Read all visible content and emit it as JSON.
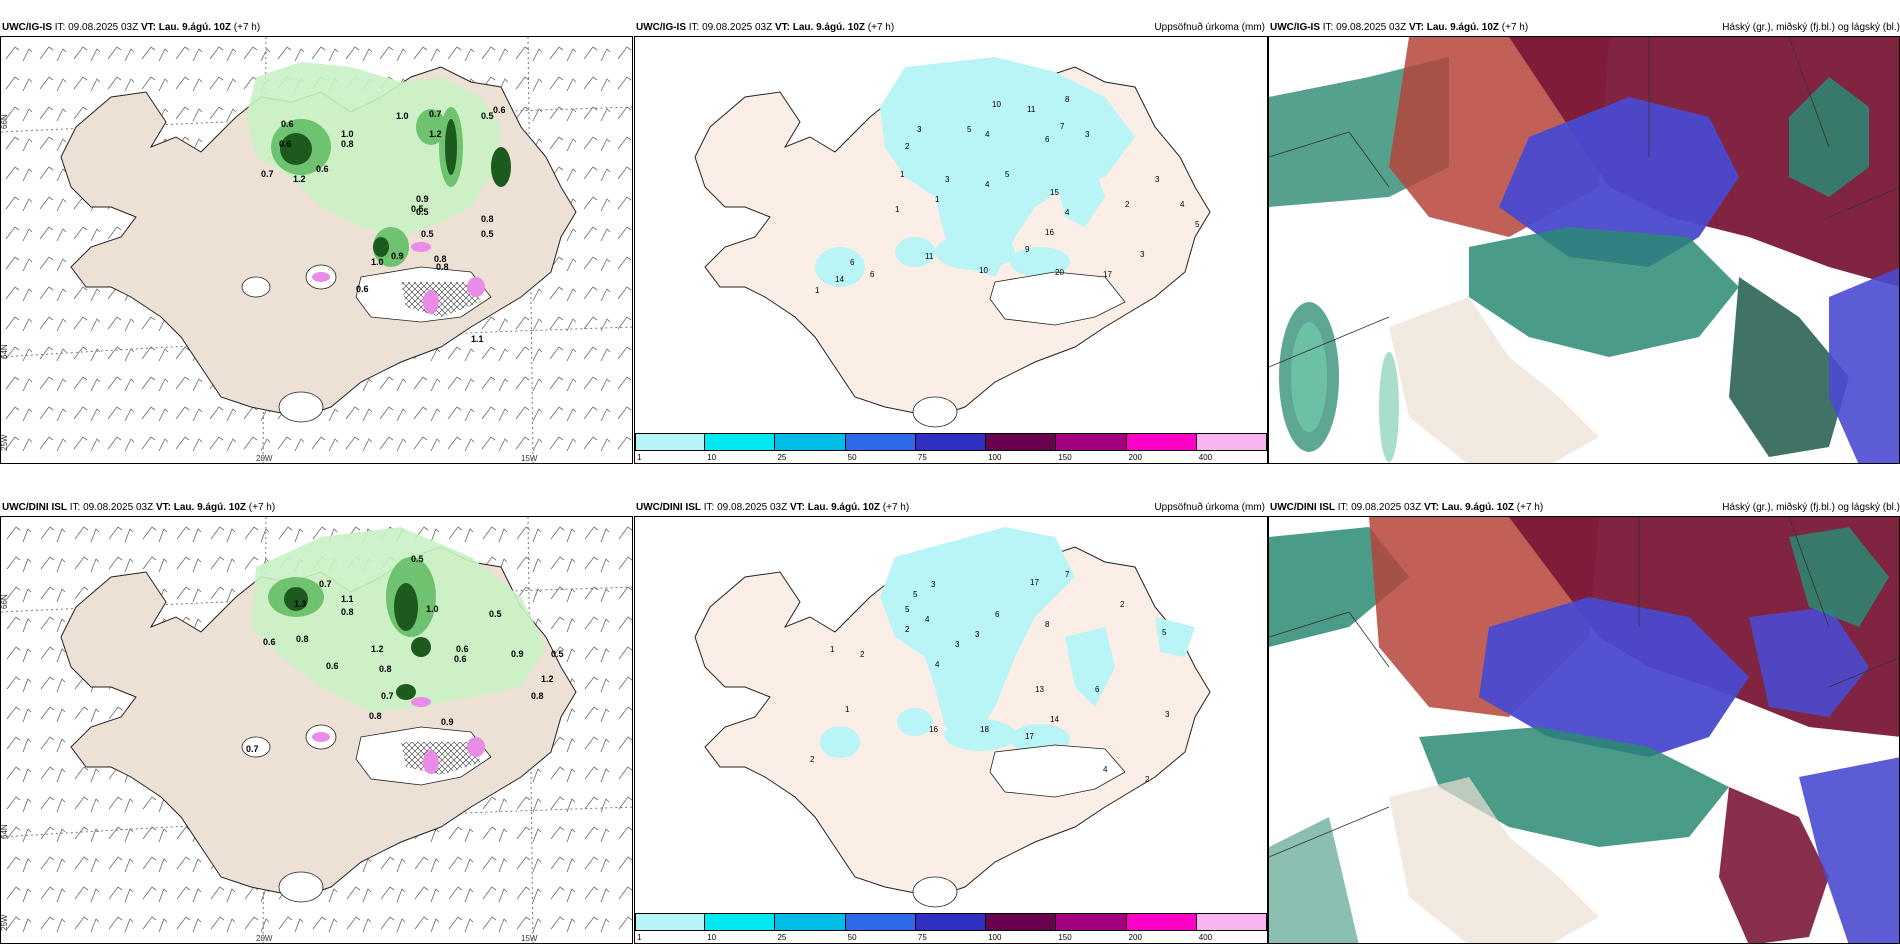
{
  "rows": [
    {
      "model": "UWC/IG-IS",
      "it_label": "IT:",
      "it_value": "09.08.2025 03Z",
      "vt_label": "VT:",
      "vt_value": "Lau. 9.ágú. 10Z",
      "lead": "(+7 h)",
      "wind_panel": {
        "lat_labels": [
          "66N",
          "64N",
          "25W"
        ],
        "lon_labels": [
          "20W",
          "15W"
        ],
        "values": [
          "0.6",
          "1.0",
          "0.6",
          "0.8",
          "0.7",
          "1.2",
          "0.6",
          "1.0",
          "0.7",
          "1.2",
          "0.5",
          "0.6",
          "0.9",
          "0.8",
          "0.5",
          "0.5",
          "1.0",
          "0.9",
          "0.8",
          "0.5",
          "0.6",
          "1.1",
          "0.5",
          "0.8"
        ]
      },
      "precip_panel": {
        "title_right": "Uppsöfnuð úrkoma (mm)",
        "values": [
          "2",
          "3",
          "10",
          "11",
          "8",
          "5",
          "4",
          "6",
          "7",
          "3",
          "1",
          "3",
          "4",
          "5",
          "15",
          "1",
          "6",
          "16",
          "4",
          "11",
          "9",
          "10",
          "20",
          "17",
          "14",
          "6",
          "1",
          "2",
          "3",
          "4",
          "5",
          "3",
          "1"
        ]
      },
      "cloud_panel": {
        "title_right": "Háský (gr.), miðský (fj.bl.) og lágský (bl.)"
      }
    },
    {
      "model": "UWC/DINI ISL",
      "it_label": "IT:",
      "it_value": "09.08.2025 03Z",
      "vt_label": "VT:",
      "vt_value": "Lau. 9.ágú. 10Z",
      "lead": "(+7 h)",
      "wind_panel": {
        "lat_labels": [
          "66N",
          "64N",
          "25W"
        ],
        "lon_labels": [
          "20W",
          "15W"
        ],
        "values": [
          "0.5",
          "0.7",
          "1.3",
          "0.8",
          "1.1",
          "1.0",
          "0.6",
          "0.8",
          "1.2",
          "0.5",
          "0.6",
          "0.9",
          "0.6",
          "0.7",
          "0.8",
          "0.8",
          "0.9",
          "0.6",
          "1.2",
          "0.8",
          "0.5",
          "0.7"
        ]
      },
      "precip_panel": {
        "title_right": "Uppsöfnuð úrkoma (mm)",
        "values": [
          "5",
          "3",
          "17",
          "7",
          "5",
          "4",
          "6",
          "8",
          "2",
          "3",
          "2",
          "1",
          "2",
          "3",
          "4",
          "5",
          "13",
          "6",
          "16",
          "18",
          "17",
          "14",
          "4",
          "2",
          "1",
          "3",
          "2"
        ]
      },
      "cloud_panel": {
        "title_right": "Háský (gr.), miðský (fj.bl.) og lágský (bl.)"
      }
    }
  ],
  "colorbar": {
    "ticks": [
      "1",
      "10",
      "25",
      "50",
      "75",
      "100",
      "150",
      "200",
      "400"
    ],
    "colors": [
      "#b5f5f7",
      "#00e8f2",
      "#00bde6",
      "#2b6be8",
      "#2f2fc0",
      "#6a0050",
      "#a3007f",
      "#ff00c8",
      "#f7b5f2"
    ]
  },
  "colors": {
    "land": "#ede0d4",
    "precip_land": "#fbeee6",
    "green_light": "#c9f2c4",
    "green_mid": "#6fc26f",
    "green_dark": "#1d5a1d",
    "cyan": "#b9f4f7",
    "magenta": "#e88ce8",
    "cloud_red": "#b5443a",
    "cloud_maroon": "#7a1838",
    "cloud_blue": "#4a4ad0",
    "cloud_teal": "#2a8a72"
  }
}
